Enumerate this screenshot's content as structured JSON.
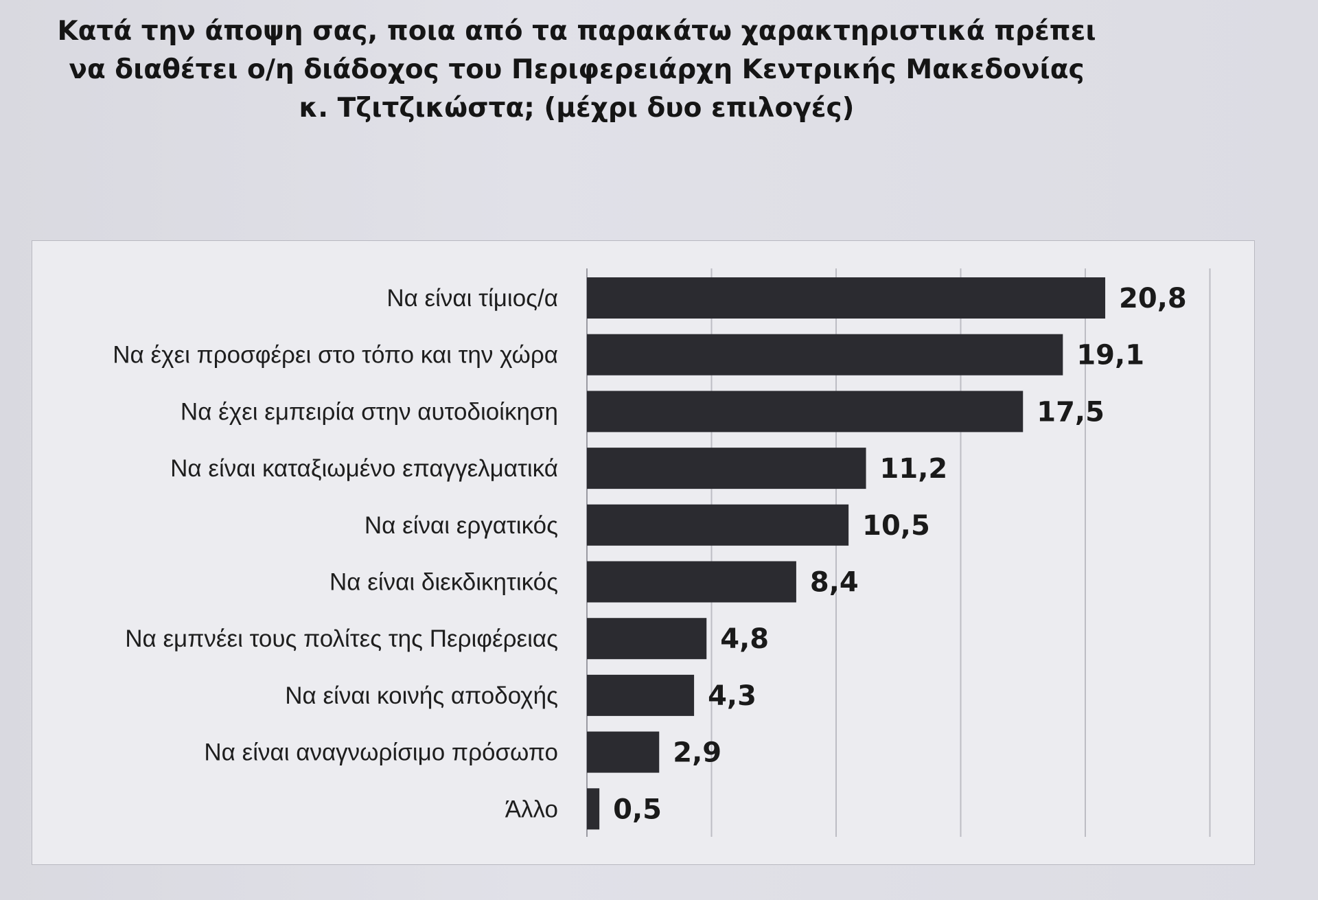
{
  "title_lines": [
    "Κατά την άποψη σας, ποια από τα παρακάτω χαρακτηριστικά πρέπει",
    "να διαθέτει ο/η διάδοχος του  Περιφερειάρχη Κεντρικής Μακεδονίας",
    "κ. Τζιτζικώστα; (μέχρι δυο επιλογές)"
  ],
  "colors": {
    "bar": "#2b2b30",
    "gridline": "#bdbdc4"
  },
  "chart_data": {
    "type": "bar",
    "orientation": "horizontal",
    "title": "Κατά την άποψη σας, ποια από τα παρακάτω χαρακτηριστικά πρέπει να διαθέτει ο/η διάδοχος του  Περιφερειάρχη Κεντρικής Μακεδονίας κ. Τζιτζικώστα; (μέχρι δυο επιλογές)",
    "categories": [
      "Να είναι τίμιος/α",
      "Να έχει προσφέρει στο τόπο και την χώρα",
      "Να έχει εμπειρία στην αυτοδιοίκηση",
      "Να είναι καταξιωμένο επαγγελματικά",
      "Να είναι εργατικός",
      "Να είναι διεκδικητικός",
      "Να εμπνέει τους πολίτες της Περιφέρειας",
      "Να είναι κοινής αποδοχής",
      "Να είναι αναγνωρίσιμο πρόσωπο",
      "Άλλο"
    ],
    "values": [
      20.8,
      19.1,
      17.5,
      11.2,
      10.5,
      8.4,
      4.8,
      4.3,
      2.9,
      0.5
    ],
    "value_labels": [
      "20,8",
      "19,1",
      "17,5",
      "11,2",
      "10,5",
      "8,4",
      "4,8",
      "4,3",
      "2,9",
      "0,5"
    ],
    "xlim": [
      0,
      25
    ],
    "grid_step": 5,
    "grid": true,
    "xlabel": "",
    "ylabel": "",
    "legend": "none"
  }
}
